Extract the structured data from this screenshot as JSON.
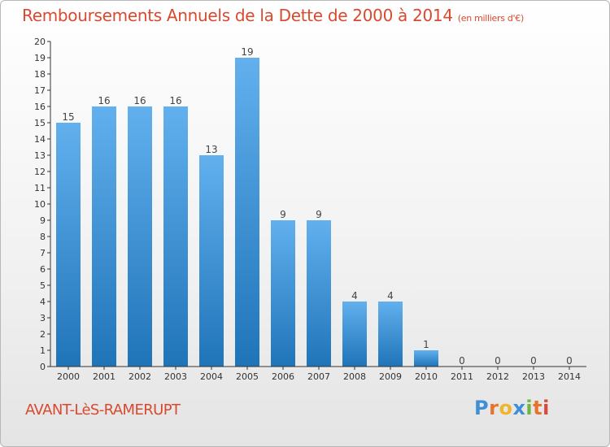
{
  "header": {
    "title": "Remboursements Annuels de la Dette de 2000 à 2014",
    "unit": "(en milliers d'€)"
  },
  "footer": {
    "commune": "AVANT-LèS-RAMERUPT",
    "logo_letters": [
      "P",
      "r",
      "o",
      "x",
      "i",
      "t",
      "i"
    ]
  },
  "colors": {
    "title": "#d9492f",
    "bar_top": "#62b0ee",
    "bar_bottom": "#1f74b8",
    "axis": "#333333"
  },
  "chart_data": {
    "type": "bar",
    "title": "Remboursements Annuels de la Dette de 2000 à 2014",
    "subtitle": "(en milliers d'€)",
    "xlabel": "",
    "ylabel": "",
    "categories": [
      "2000",
      "2001",
      "2002",
      "2003",
      "2004",
      "2005",
      "2006",
      "2007",
      "2008",
      "2009",
      "2010",
      "2011",
      "2012",
      "2013",
      "2014"
    ],
    "values": [
      15,
      16,
      16,
      16,
      13,
      19,
      9,
      9,
      4,
      4,
      1,
      0,
      0,
      0,
      0
    ],
    "ylim": [
      0,
      20
    ],
    "yticks": [
      0,
      1,
      2,
      3,
      4,
      5,
      6,
      7,
      8,
      9,
      10,
      11,
      12,
      13,
      14,
      15,
      16,
      17,
      18,
      19,
      20
    ],
    "grid": false,
    "legend": "none",
    "data_labels": true
  }
}
